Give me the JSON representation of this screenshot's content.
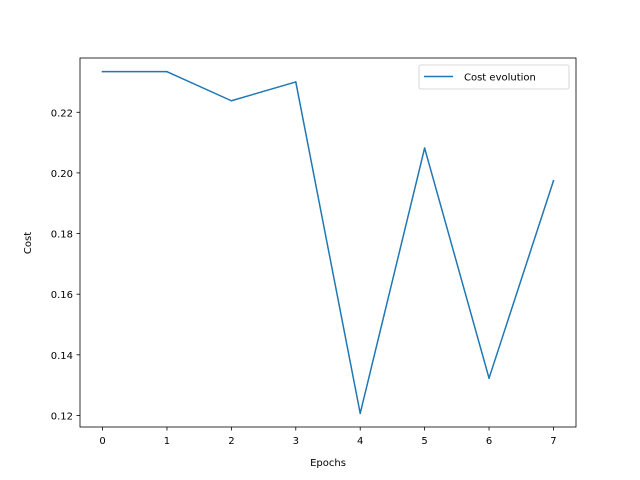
{
  "chart_data": {
    "type": "line",
    "title": "",
    "xlabel": "Epochs",
    "ylabel": "Cost",
    "x": [
      0,
      1,
      2,
      3,
      4,
      5,
      6,
      7
    ],
    "series": [
      {
        "name": "Cost evolution",
        "color": "#1f77b4",
        "values": [
          0.2334,
          0.2334,
          0.2238,
          0.23,
          0.1207,
          0.2082,
          0.1323,
          0.1974
        ]
      }
    ],
    "xlim": [
      -0.35,
      7.35
    ],
    "ylim": [
      0.1162,
      0.2379
    ],
    "xticks": [
      0,
      1,
      2,
      3,
      4,
      5,
      6,
      7
    ],
    "yticks": [
      0.12,
      0.14,
      0.16,
      0.18,
      0.2,
      0.22
    ],
    "ytick_labels": [
      "0.12",
      "0.14",
      "0.16",
      "0.18",
      "0.20",
      "0.22"
    ],
    "grid": false,
    "legend_position": "top-right"
  }
}
